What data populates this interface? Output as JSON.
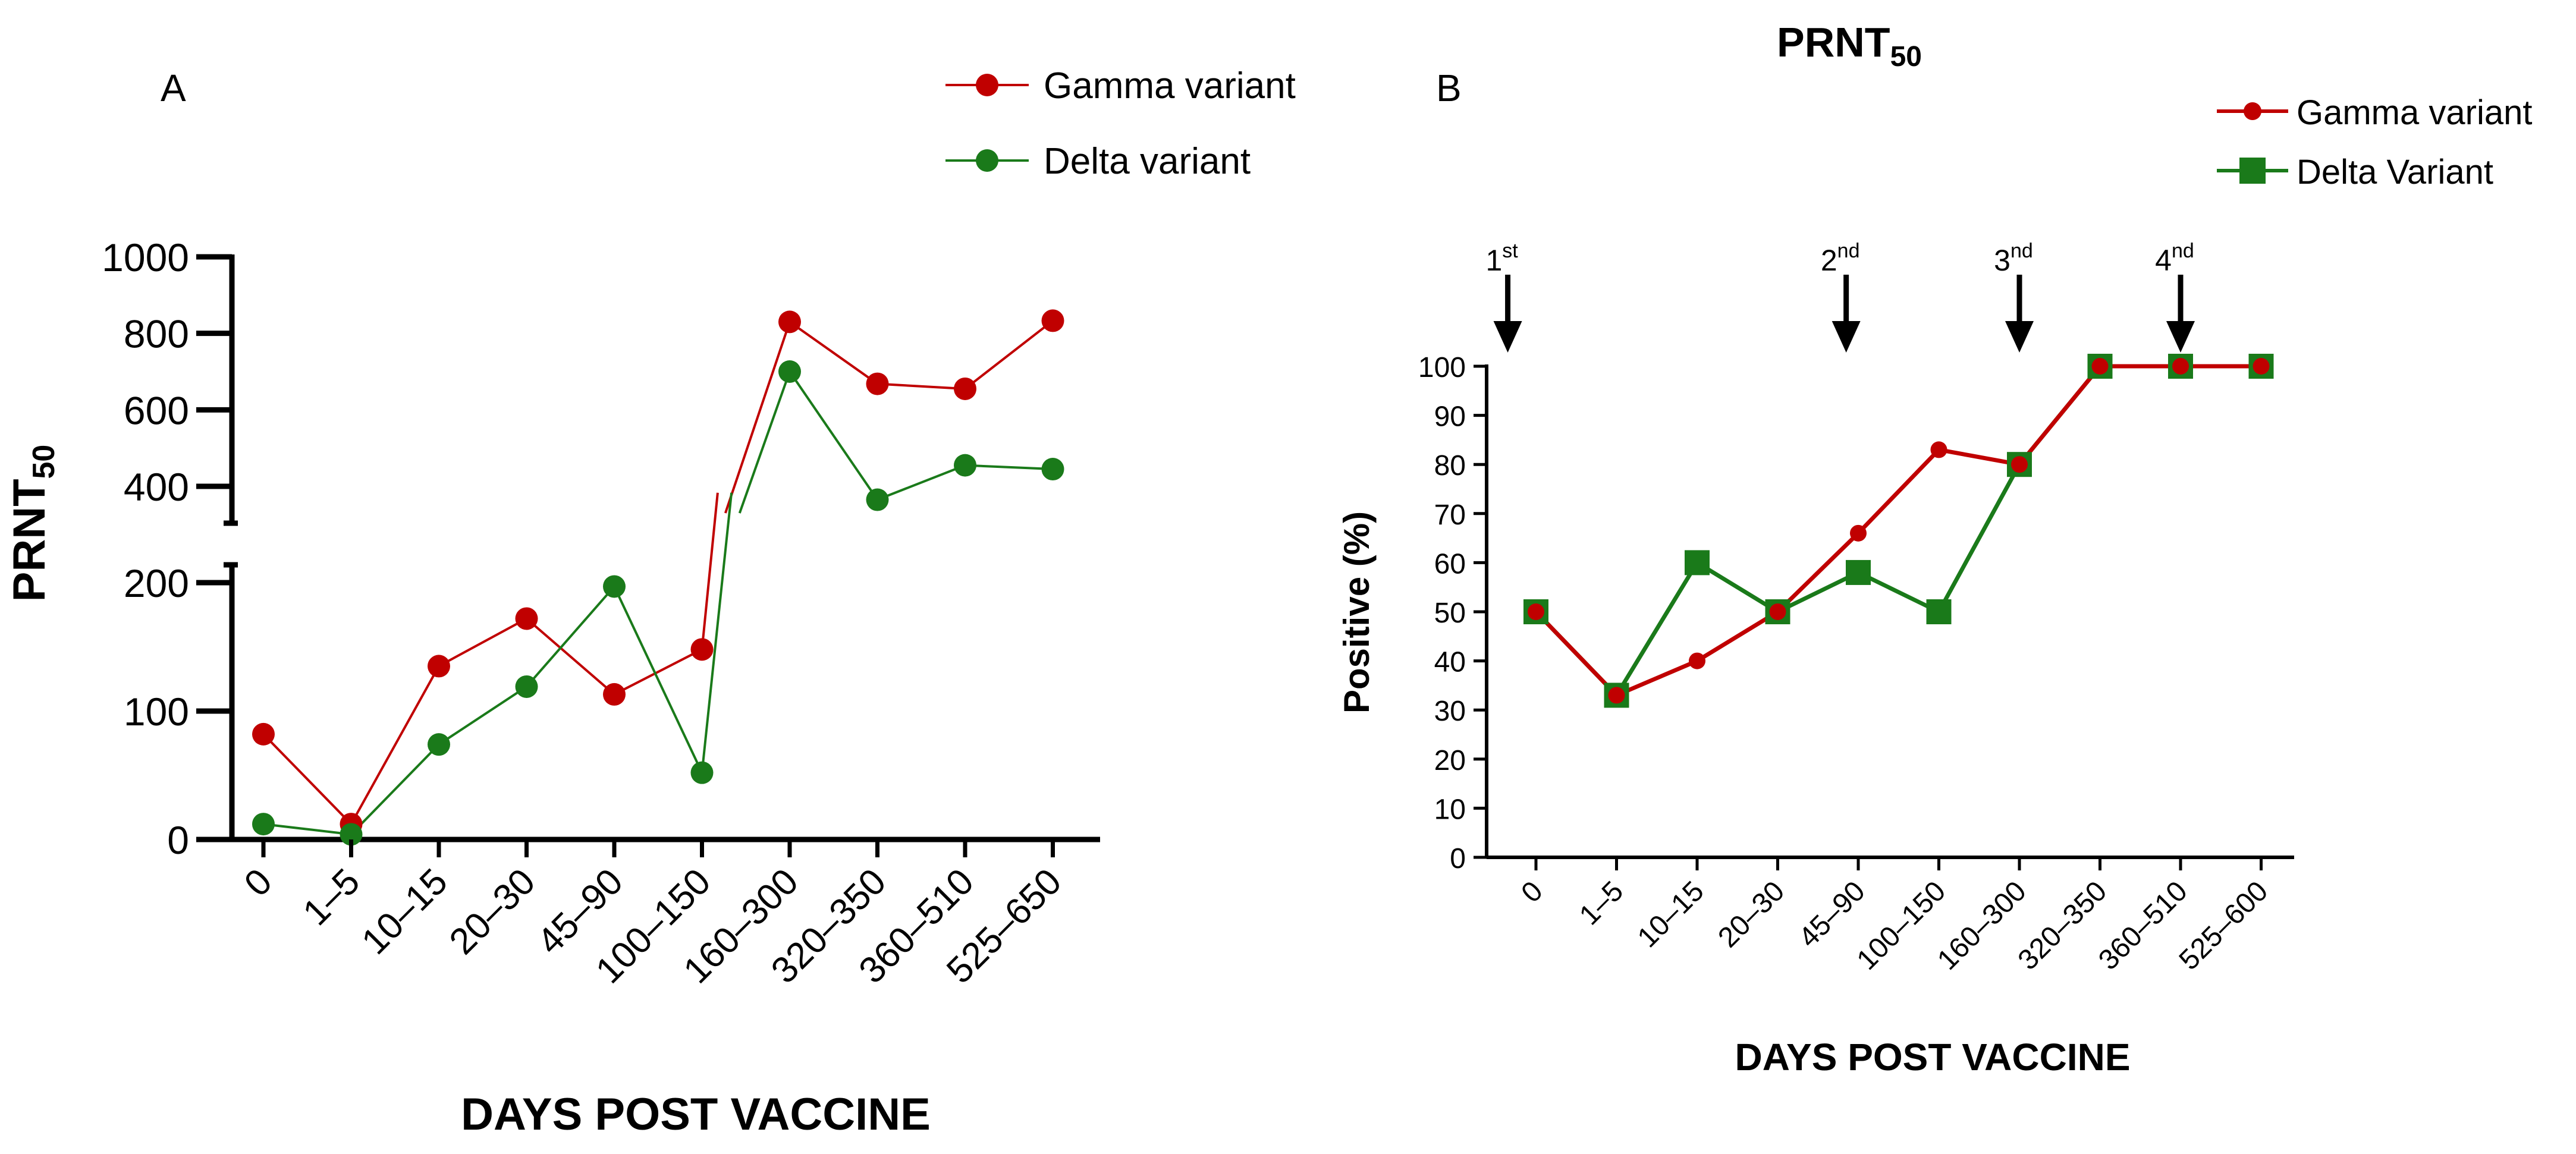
{
  "colors": {
    "gamma": "#c00000",
    "delta": "#1a7a1a",
    "axis": "#000000"
  },
  "chart_data": [
    {
      "panel": "A",
      "type": "line",
      "title": "",
      "xlabel": "DAYS POST VACCINE",
      "ylabel": "PRNT",
      "ylabel_sub": "50",
      "categories": [
        "0",
        "1–5",
        "10–15",
        "20–30",
        "45–90",
        "100–150",
        "160–300",
        "320–350",
        "360–510",
        "525–650"
      ],
      "y_axis_break": {
        "lower_range": [
          0,
          200
        ],
        "upper_range": [
          300,
          1000
        ],
        "lower_ticks": [
          "0",
          "100",
          "200"
        ],
        "upper_ticks": [
          "400",
          "600",
          "800",
          "1000"
        ]
      },
      "ylim": [
        0,
        1000
      ],
      "legend_position": "top-right",
      "series": [
        {
          "name": "Gamma variant",
          "marker": "circle",
          "values": [
            82,
            12,
            135,
            172,
            113,
            148,
            830,
            668,
            655,
            833
          ]
        },
        {
          "name": "Delta variant",
          "marker": "circle",
          "values": [
            12,
            4,
            74,
            119,
            197,
            52,
            700,
            365,
            455,
            445
          ]
        }
      ]
    },
    {
      "panel": "B",
      "type": "line",
      "title": "PRNT",
      "title_sub": "50",
      "xlabel": "DAYS POST VACCINE",
      "ylabel": "Positive (%)",
      "categories": [
        "0",
        "1–5",
        "10–15",
        "20–30",
        "45–90",
        "100–150",
        "160–300",
        "320–350",
        "360–510",
        "525–600"
      ],
      "ylim": [
        0,
        100
      ],
      "y_ticks": [
        "0",
        "10",
        "20",
        "30",
        "40",
        "50",
        "60",
        "70",
        "80",
        "90",
        "100"
      ],
      "legend_position": "top-right",
      "series": [
        {
          "name": "Gamma variant",
          "marker": "circle",
          "values": [
            50,
            33,
            40,
            50,
            66,
            83,
            80,
            100,
            100,
            100
          ]
        },
        {
          "name": "Delta Variant",
          "marker": "square",
          "values": [
            50,
            33,
            60,
            50,
            58,
            50,
            80,
            100,
            100,
            100
          ]
        }
      ],
      "annotations": [
        {
          "label": "1",
          "sup": "st",
          "at_category": 0,
          "offset": -0.35
        },
        {
          "label": "2",
          "sup": "nd",
          "at_category": 4,
          "offset": -0.15
        },
        {
          "label": "3",
          "sup": "nd",
          "at_category": 6,
          "offset": 0.0
        },
        {
          "label": "4",
          "sup": "nd",
          "at_category": 8,
          "offset": 0.0
        }
      ]
    }
  ]
}
